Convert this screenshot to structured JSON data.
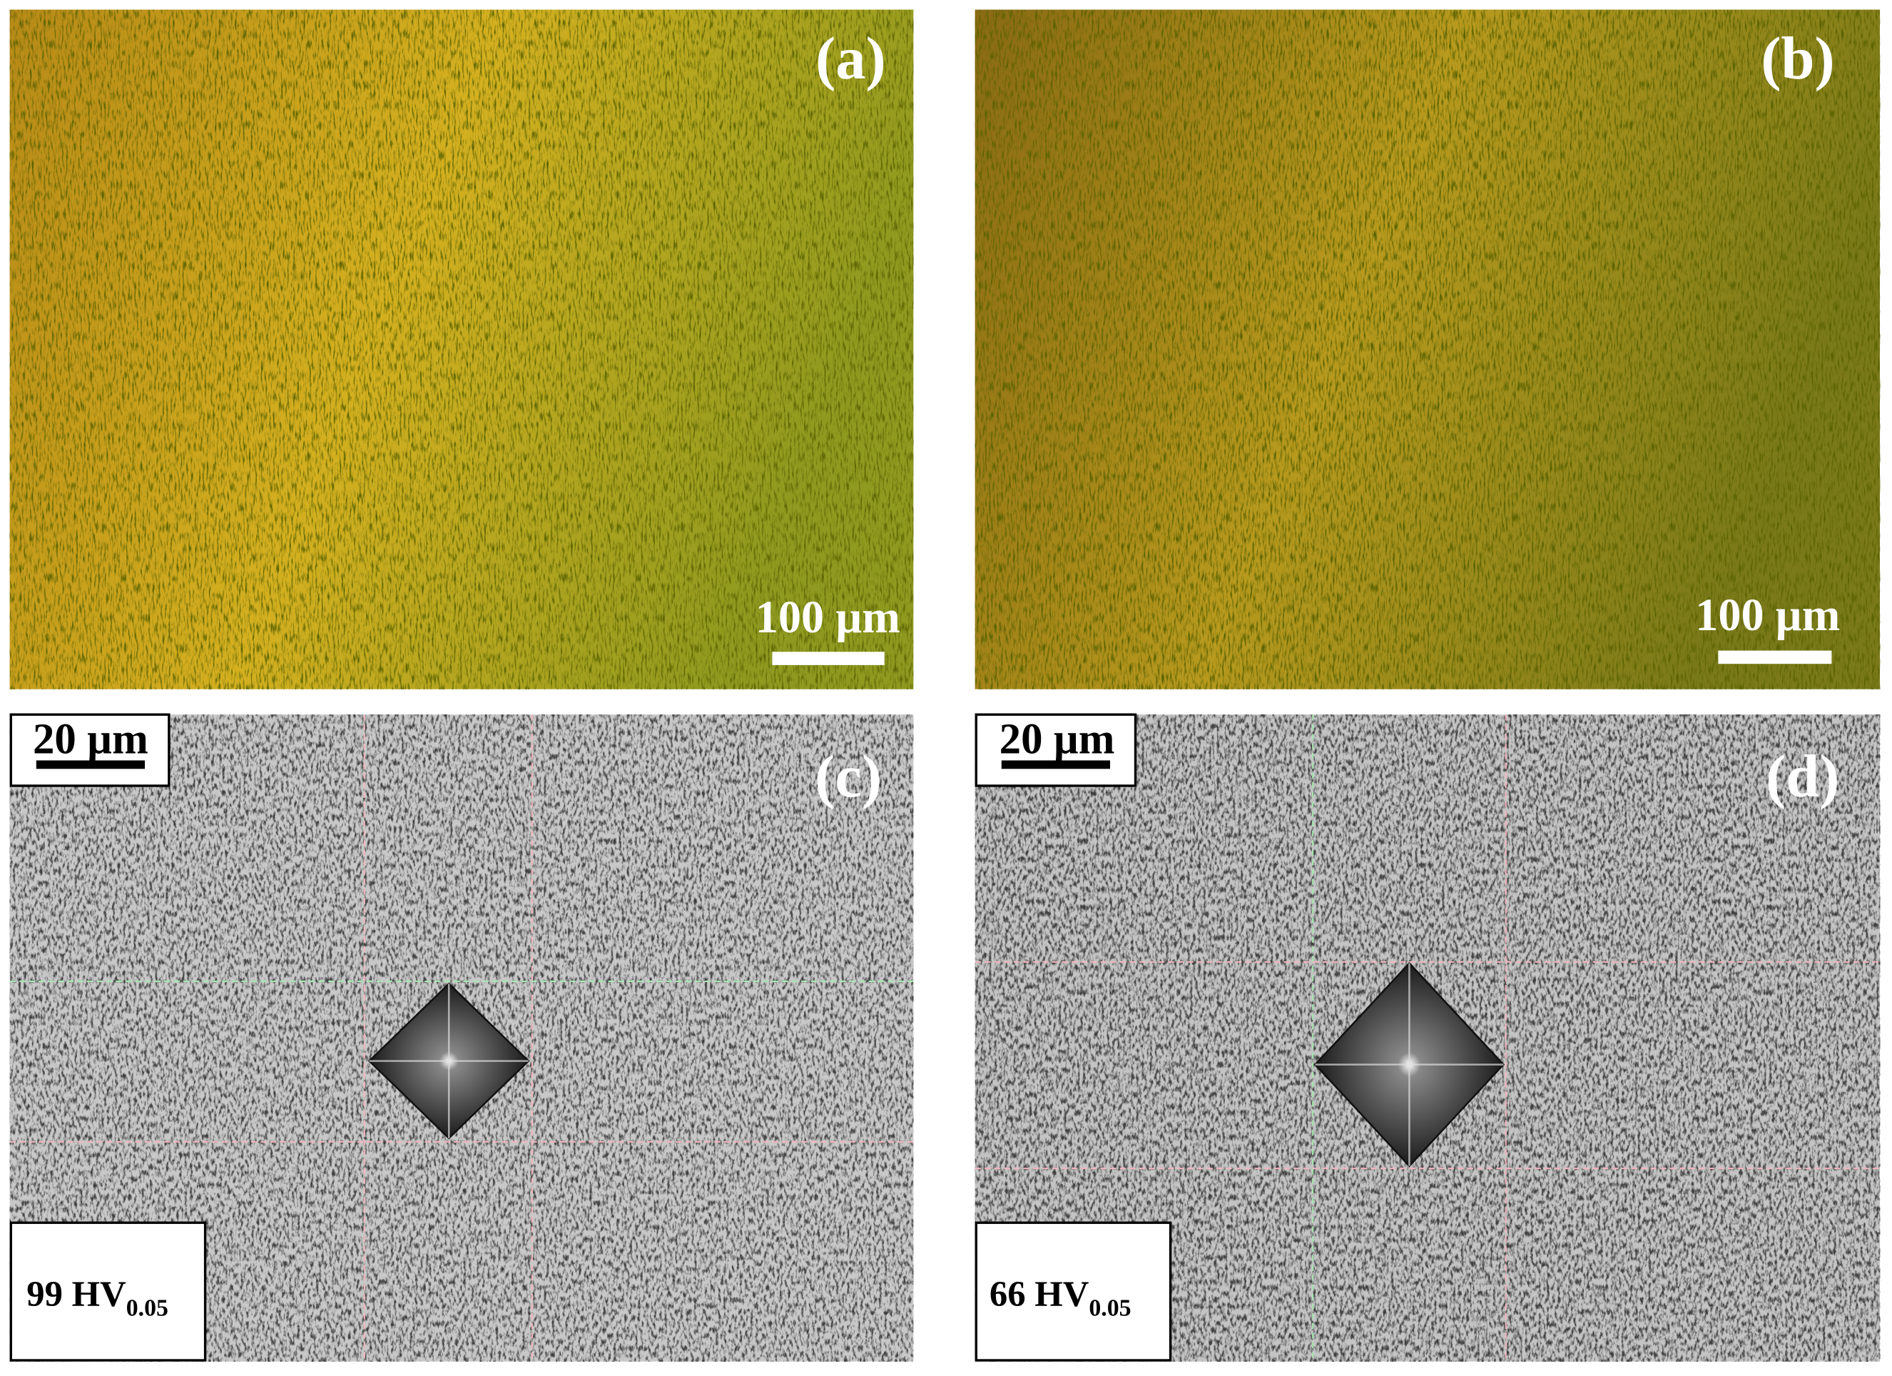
{
  "panels": [
    {
      "label": "(a)",
      "scale_bar": "100 µm"
    },
    {
      "label": "(b)",
      "scale_bar": "100 µm"
    },
    {
      "label": "(c)",
      "scale_bar": "20 µm",
      "hardness": {
        "main": "99 HV",
        "subscript": "0.05"
      }
    },
    {
      "label": "(d)",
      "scale_bar": "20 µm",
      "hardness": {
        "main": "66 HV",
        "subscript": "0.05"
      }
    }
  ]
}
